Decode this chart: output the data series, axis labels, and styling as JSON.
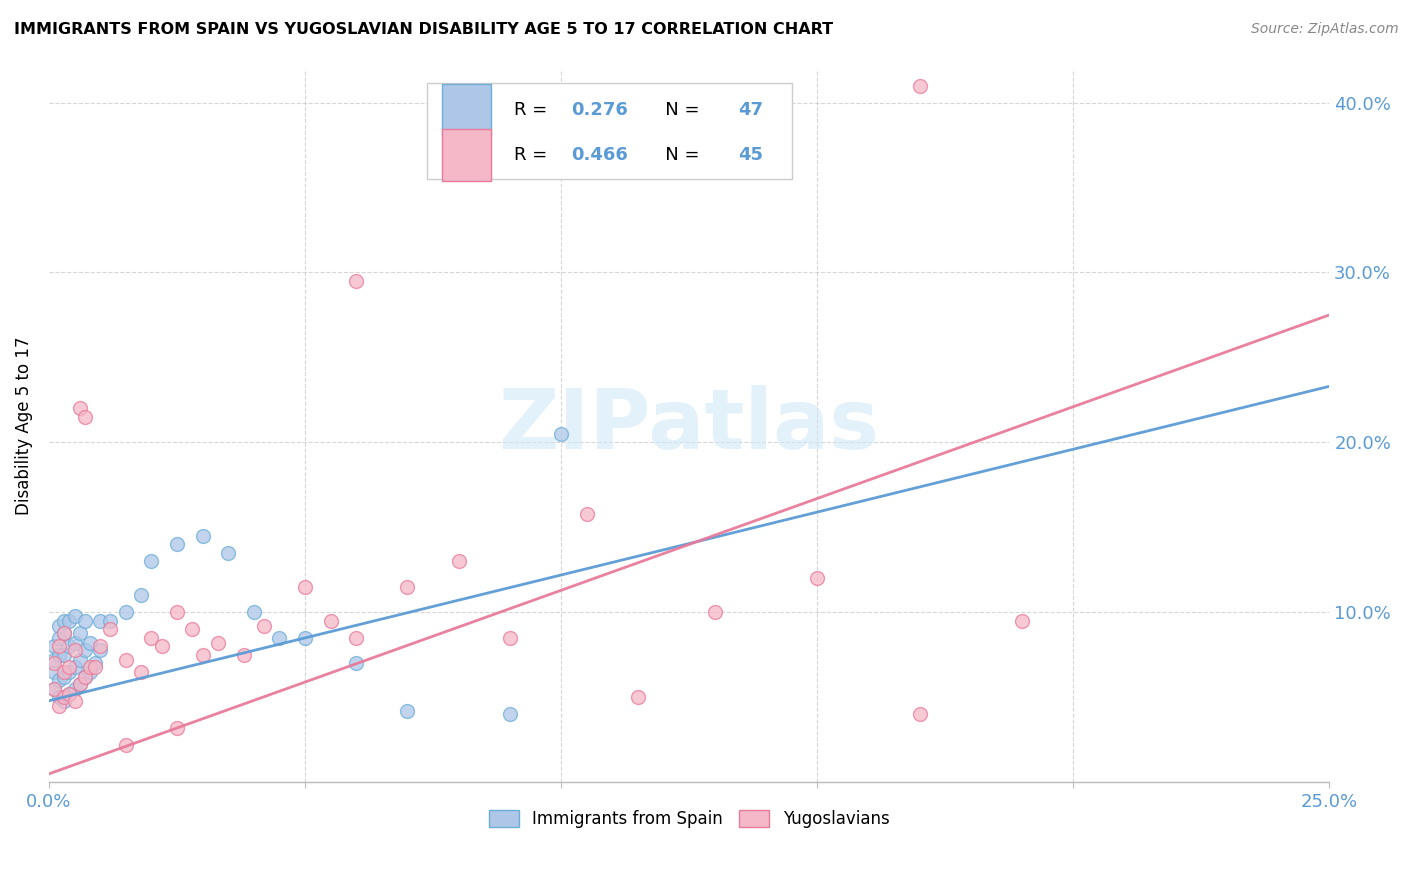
{
  "title": "IMMIGRANTS FROM SPAIN VS YUGOSLAVIAN DISABILITY AGE 5 TO 17 CORRELATION CHART",
  "source": "Source: ZipAtlas.com",
  "ylabel": "Disability Age 5 to 17",
  "xlim": [
    0.0,
    0.25
  ],
  "ylim": [
    0.0,
    0.42
  ],
  "xtick_positions": [
    0.0,
    0.05,
    0.1,
    0.15,
    0.2,
    0.25
  ],
  "xtick_labels": [
    "0.0%",
    "",
    "",
    "",
    "",
    "25.0%"
  ],
  "ytick_positions": [
    0.0,
    0.1,
    0.2,
    0.3,
    0.4
  ],
  "ytick_labels_right": [
    "",
    "10.0%",
    "20.0%",
    "30.0%",
    "40.0%"
  ],
  "legend_text_r1": "R =  0.276    N =  47",
  "legend_text_r2": "R =  0.466    N =  45",
  "legend_color_blue": "#5b9bd5",
  "color_blue_fill": "#aec6e8",
  "color_blue_edge": "#6baed6",
  "color_pink_fill": "#f4b8c8",
  "color_pink_edge": "#e87a9a",
  "color_line_blue": "#5b9bd5",
  "color_line_pink": "#e87a9a",
  "watermark": "ZIPatlas",
  "watermark_color": "#d0e8f8",
  "grid_color": "#cccccc",
  "spain_line_intercept": 0.048,
  "spain_line_slope": 0.74,
  "yugo_line_intercept": 0.005,
  "yugo_line_slope": 1.08,
  "spain_x": [
    0.001,
    0.001,
    0.001,
    0.001,
    0.002,
    0.002,
    0.002,
    0.002,
    0.002,
    0.003,
    0.003,
    0.003,
    0.003,
    0.003,
    0.004,
    0.004,
    0.004,
    0.004,
    0.005,
    0.005,
    0.005,
    0.005,
    0.006,
    0.006,
    0.006,
    0.007,
    0.007,
    0.007,
    0.008,
    0.008,
    0.009,
    0.01,
    0.01,
    0.012,
    0.015,
    0.018,
    0.02,
    0.025,
    0.03,
    0.035,
    0.04,
    0.045,
    0.05,
    0.06,
    0.07,
    0.09,
    0.1
  ],
  "spain_y": [
    0.055,
    0.065,
    0.072,
    0.08,
    0.05,
    0.06,
    0.075,
    0.085,
    0.092,
    0.048,
    0.062,
    0.075,
    0.088,
    0.095,
    0.052,
    0.065,
    0.08,
    0.095,
    0.055,
    0.068,
    0.082,
    0.098,
    0.058,
    0.072,
    0.088,
    0.062,
    0.078,
    0.095,
    0.065,
    0.082,
    0.07,
    0.078,
    0.095,
    0.095,
    0.1,
    0.11,
    0.13,
    0.14,
    0.145,
    0.135,
    0.1,
    0.085,
    0.085,
    0.07,
    0.042,
    0.04,
    0.205
  ],
  "yugo_x": [
    0.001,
    0.001,
    0.002,
    0.002,
    0.003,
    0.003,
    0.003,
    0.004,
    0.004,
    0.005,
    0.005,
    0.006,
    0.006,
    0.007,
    0.007,
    0.008,
    0.009,
    0.01,
    0.012,
    0.015,
    0.018,
    0.02,
    0.022,
    0.025,
    0.028,
    0.03,
    0.033,
    0.038,
    0.042,
    0.05,
    0.055,
    0.06,
    0.07,
    0.08,
    0.09,
    0.105,
    0.115,
    0.13,
    0.15,
    0.17,
    0.19,
    0.015,
    0.025,
    0.06,
    0.17
  ],
  "yugo_y": [
    0.055,
    0.07,
    0.045,
    0.08,
    0.05,
    0.065,
    0.088,
    0.052,
    0.068,
    0.048,
    0.078,
    0.058,
    0.22,
    0.062,
    0.215,
    0.068,
    0.068,
    0.08,
    0.09,
    0.072,
    0.065,
    0.085,
    0.08,
    0.1,
    0.09,
    0.075,
    0.082,
    0.075,
    0.092,
    0.115,
    0.095,
    0.085,
    0.115,
    0.13,
    0.085,
    0.158,
    0.05,
    0.1,
    0.12,
    0.04,
    0.095,
    0.022,
    0.032,
    0.295,
    0.41
  ]
}
